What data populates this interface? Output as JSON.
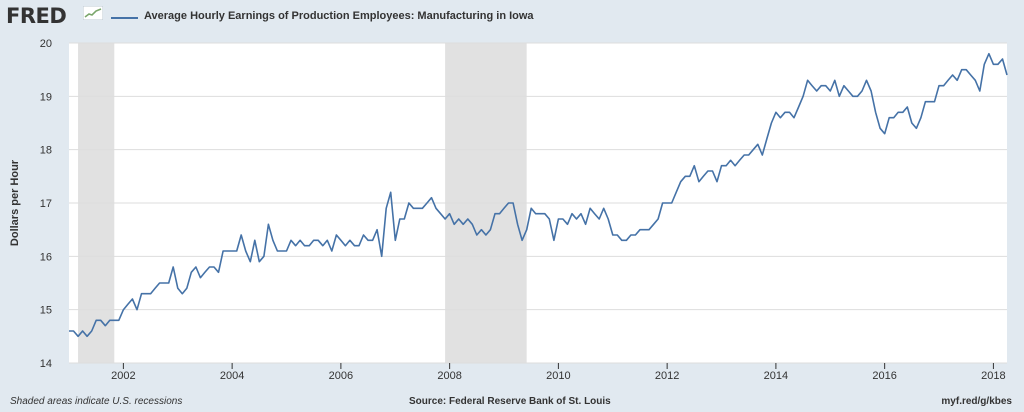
{
  "header": {
    "logo_text": "FRED",
    "legend_label": "Average Hourly Earnings of Production Employees: Manufacturing in Iowa"
  },
  "footer": {
    "recession_note": "Shaded areas indicate U.S. recessions",
    "source": "Source: Federal Reserve Bank of St. Louis",
    "short_url": "myf.red/g/kbes"
  },
  "colors": {
    "line": "#4572a7",
    "plot_background": "#ffffff",
    "page_background": "#e1e9f0",
    "recession_shade": "#e1e1e1",
    "grid": "#dddddd"
  },
  "icons": {
    "logo_graph": "trend-graph-icon"
  },
  "chart_data": {
    "type": "line",
    "title": "Average Hourly Earnings of Production Employees: Manufacturing in Iowa",
    "xlabel": "",
    "ylabel": "Dollars per Hour",
    "ylim": [
      14,
      20
    ],
    "xlim": [
      "2001-01",
      "2018-04"
    ],
    "yticks": [
      14,
      15,
      16,
      17,
      18,
      19,
      20
    ],
    "xticks": [
      "2002",
      "2004",
      "2006",
      "2008",
      "2010",
      "2012",
      "2014",
      "2016",
      "2018"
    ],
    "grid": "horizontal",
    "recessions": [
      {
        "start": "2001-03",
        "end": "2001-11"
      },
      {
        "start": "2007-12",
        "end": "2009-06"
      }
    ],
    "series": [
      {
        "name": "Average Hourly Earnings of Production Employees: Manufacturing in Iowa",
        "x": [
          "2001-01",
          "2001-02",
          "2001-03",
          "2001-04",
          "2001-05",
          "2001-06",
          "2001-07",
          "2001-08",
          "2001-09",
          "2001-10",
          "2001-11",
          "2001-12",
          "2002-01",
          "2002-02",
          "2002-03",
          "2002-04",
          "2002-05",
          "2002-06",
          "2002-07",
          "2002-08",
          "2002-09",
          "2002-10",
          "2002-11",
          "2002-12",
          "2003-01",
          "2003-02",
          "2003-03",
          "2003-04",
          "2003-05",
          "2003-06",
          "2003-07",
          "2003-08",
          "2003-09",
          "2003-10",
          "2003-11",
          "2003-12",
          "2004-01",
          "2004-02",
          "2004-03",
          "2004-04",
          "2004-05",
          "2004-06",
          "2004-07",
          "2004-08",
          "2004-09",
          "2004-10",
          "2004-11",
          "2004-12",
          "2005-01",
          "2005-02",
          "2005-03",
          "2005-04",
          "2005-05",
          "2005-06",
          "2005-07",
          "2005-08",
          "2005-09",
          "2005-10",
          "2005-11",
          "2005-12",
          "2006-01",
          "2006-02",
          "2006-03",
          "2006-04",
          "2006-05",
          "2006-06",
          "2006-07",
          "2006-08",
          "2006-09",
          "2006-10",
          "2006-11",
          "2006-12",
          "2007-01",
          "2007-02",
          "2007-03",
          "2007-04",
          "2007-05",
          "2007-06",
          "2007-07",
          "2007-08",
          "2007-09",
          "2007-10",
          "2007-11",
          "2007-12",
          "2008-01",
          "2008-02",
          "2008-03",
          "2008-04",
          "2008-05",
          "2008-06",
          "2008-07",
          "2008-08",
          "2008-09",
          "2008-10",
          "2008-11",
          "2008-12",
          "2009-01",
          "2009-02",
          "2009-03",
          "2009-04",
          "2009-05",
          "2009-06",
          "2009-07",
          "2009-08",
          "2009-09",
          "2009-10",
          "2009-11",
          "2009-12",
          "2010-01",
          "2010-02",
          "2010-03",
          "2010-04",
          "2010-05",
          "2010-06",
          "2010-07",
          "2010-08",
          "2010-09",
          "2010-10",
          "2010-11",
          "2010-12",
          "2011-01",
          "2011-02",
          "2011-03",
          "2011-04",
          "2011-05",
          "2011-06",
          "2011-07",
          "2011-08",
          "2011-09",
          "2011-10",
          "2011-11",
          "2011-12",
          "2012-01",
          "2012-02",
          "2012-03",
          "2012-04",
          "2012-05",
          "2012-06",
          "2012-07",
          "2012-08",
          "2012-09",
          "2012-10",
          "2012-11",
          "2012-12",
          "2013-01",
          "2013-02",
          "2013-03",
          "2013-04",
          "2013-05",
          "2013-06",
          "2013-07",
          "2013-08",
          "2013-09",
          "2013-10",
          "2013-11",
          "2013-12",
          "2014-01",
          "2014-02",
          "2014-03",
          "2014-04",
          "2014-05",
          "2014-06",
          "2014-07",
          "2014-08",
          "2014-09",
          "2014-10",
          "2014-11",
          "2014-12",
          "2015-01",
          "2015-02",
          "2015-03",
          "2015-04",
          "2015-05",
          "2015-06",
          "2015-07",
          "2015-08",
          "2015-09",
          "2015-10",
          "2015-11",
          "2015-12",
          "2016-01",
          "2016-02",
          "2016-03",
          "2016-04",
          "2016-05",
          "2016-06",
          "2016-07",
          "2016-08",
          "2016-09",
          "2016-10",
          "2016-11",
          "2016-12",
          "2017-01",
          "2017-02",
          "2017-03",
          "2017-04",
          "2017-05",
          "2017-06",
          "2017-07",
          "2017-08",
          "2017-09",
          "2017-10",
          "2017-11",
          "2017-12",
          "2018-01",
          "2018-02",
          "2018-03",
          "2018-04"
        ],
        "values": [
          14.6,
          14.6,
          14.5,
          14.6,
          14.5,
          14.6,
          14.8,
          14.8,
          14.7,
          14.8,
          14.8,
          14.8,
          15.0,
          15.1,
          15.2,
          15.0,
          15.3,
          15.3,
          15.3,
          15.4,
          15.5,
          15.5,
          15.5,
          15.8,
          15.4,
          15.3,
          15.4,
          15.7,
          15.8,
          15.6,
          15.7,
          15.8,
          15.8,
          15.7,
          16.1,
          16.1,
          16.1,
          16.1,
          16.4,
          16.1,
          15.9,
          16.3,
          15.9,
          16.0,
          16.6,
          16.3,
          16.1,
          16.1,
          16.1,
          16.3,
          16.2,
          16.3,
          16.2,
          16.2,
          16.3,
          16.3,
          16.2,
          16.3,
          16.1,
          16.4,
          16.3,
          16.2,
          16.3,
          16.2,
          16.2,
          16.4,
          16.3,
          16.3,
          16.5,
          16.0,
          16.9,
          17.2,
          16.3,
          16.7,
          16.7,
          17.0,
          16.9,
          16.9,
          16.9,
          17.0,
          17.1,
          16.9,
          16.8,
          16.7,
          16.8,
          16.6,
          16.7,
          16.6,
          16.7,
          16.6,
          16.4,
          16.5,
          16.4,
          16.5,
          16.8,
          16.8,
          16.9,
          17.0,
          17.0,
          16.6,
          16.3,
          16.5,
          16.9,
          16.8,
          16.8,
          16.8,
          16.7,
          16.3,
          16.7,
          16.7,
          16.6,
          16.8,
          16.7,
          16.8,
          16.6,
          16.9,
          16.8,
          16.7,
          16.9,
          16.7,
          16.4,
          16.4,
          16.3,
          16.3,
          16.4,
          16.4,
          16.5,
          16.5,
          16.5,
          16.6,
          16.7,
          17.0,
          17.0,
          17.0,
          17.2,
          17.4,
          17.5,
          17.5,
          17.7,
          17.4,
          17.5,
          17.6,
          17.6,
          17.4,
          17.7,
          17.7,
          17.8,
          17.7,
          17.8,
          17.9,
          17.9,
          18.0,
          18.1,
          17.9,
          18.2,
          18.5,
          18.7,
          18.6,
          18.7,
          18.7,
          18.6,
          18.8,
          19.0,
          19.3,
          19.2,
          19.1,
          19.2,
          19.2,
          19.1,
          19.3,
          19.0,
          19.2,
          19.1,
          19.0,
          19.0,
          19.1,
          19.3,
          19.1,
          18.7,
          18.4,
          18.3,
          18.6,
          18.6,
          18.7,
          18.7,
          18.8,
          18.5,
          18.4,
          18.6,
          18.9,
          18.9,
          18.9,
          19.2,
          19.2,
          19.3,
          19.4,
          19.3,
          19.5,
          19.5,
          19.4,
          19.3,
          19.1,
          19.6,
          19.8,
          19.6,
          19.6,
          19.7,
          19.4
        ]
      }
    ]
  }
}
